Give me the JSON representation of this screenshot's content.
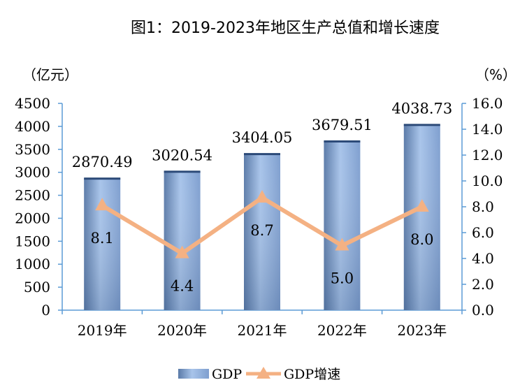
{
  "chart_data": {
    "type": "bar+line",
    "title": "图1：2019-2023年地区生产总值和增长速度",
    "categories": [
      "2019年",
      "2020年",
      "2021年",
      "2022年",
      "2023年"
    ],
    "series": [
      {
        "name": "GDP",
        "type": "bar",
        "axis": "left",
        "values": [
          2870.49,
          3020.54,
          3404.05,
          3679.51,
          4038.73
        ],
        "labels": [
          "2870.49",
          "3020.54",
          "3404.05",
          "3679.51",
          "4038.73"
        ],
        "color": "#8aaad6"
      },
      {
        "name": "GDP增速",
        "type": "line",
        "axis": "right",
        "values": [
          8.1,
          4.4,
          8.7,
          5.0,
          8.0
        ],
        "labels": [
          "8.1",
          "4.4",
          "8.7",
          "5.0",
          "8.0"
        ],
        "color": "#f4b183"
      }
    ],
    "y_left": {
      "unit": "（亿元）",
      "min": 0,
      "max": 4500,
      "step": 500,
      "ticks": [
        "0",
        "500",
        "1000",
        "1500",
        "2000",
        "2500",
        "3000",
        "3500",
        "4000",
        "4500"
      ]
    },
    "y_right": {
      "unit": "（%）",
      "min": 0,
      "max": 16,
      "step": 2,
      "ticks": [
        "0.0",
        "2.0",
        "4.0",
        "6.0",
        "8.0",
        "10.0",
        "12.0",
        "14.0",
        "16.0"
      ]
    },
    "legend": {
      "position": "bottom",
      "items": [
        {
          "label": "GDP",
          "kind": "bar"
        },
        {
          "label": "GDP增速",
          "kind": "line"
        }
      ]
    },
    "axis_color": "#5b9bd5",
    "grid": false
  }
}
